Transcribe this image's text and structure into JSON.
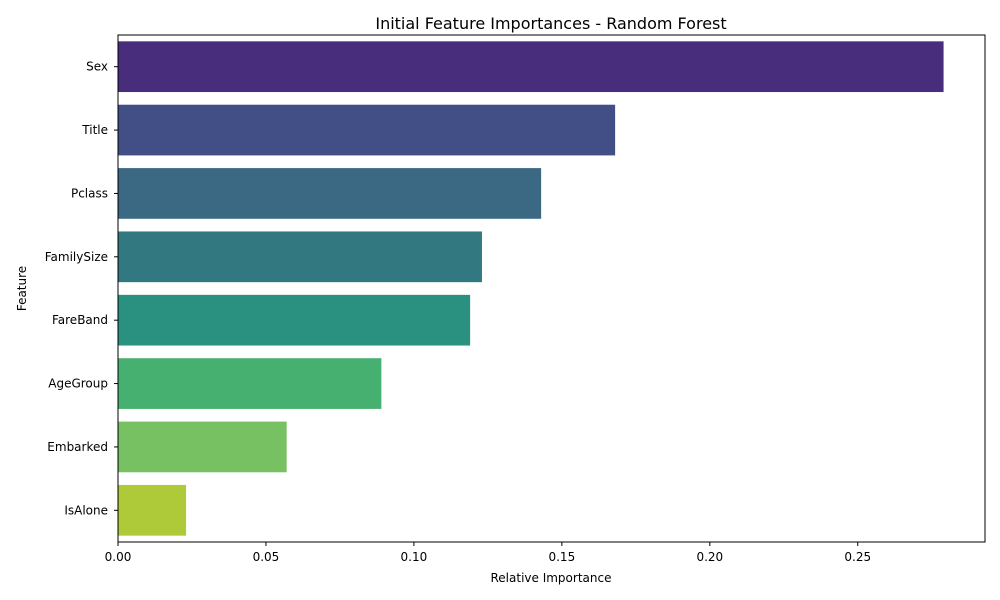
{
  "chart_data": {
    "type": "bar",
    "orientation": "horizontal",
    "title": "Initial Feature Importances - Random Forest",
    "xlabel": "Relative Importance",
    "ylabel": "Feature",
    "categories": [
      "Sex",
      "Title",
      "Pclass",
      "FamilySize",
      "FareBand",
      "AgeGroup",
      "Embarked",
      "IsAlone"
    ],
    "values": [
      0.279,
      0.168,
      0.143,
      0.123,
      0.119,
      0.089,
      0.057,
      0.023
    ],
    "colors": [
      "#472d7b",
      "#424f86",
      "#3b6883",
      "#317881",
      "#2a907f",
      "#46b070",
      "#78c163",
      "#aeca39"
    ],
    "xlim": [
      0,
      0.293
    ],
    "xticks": [
      0.0,
      0.05,
      0.1,
      0.15,
      0.2,
      0.25
    ],
    "xtick_labels": [
      "0.00",
      "0.05",
      "0.10",
      "0.15",
      "0.20",
      "0.25"
    ],
    "grid": false,
    "legend": "none"
  }
}
